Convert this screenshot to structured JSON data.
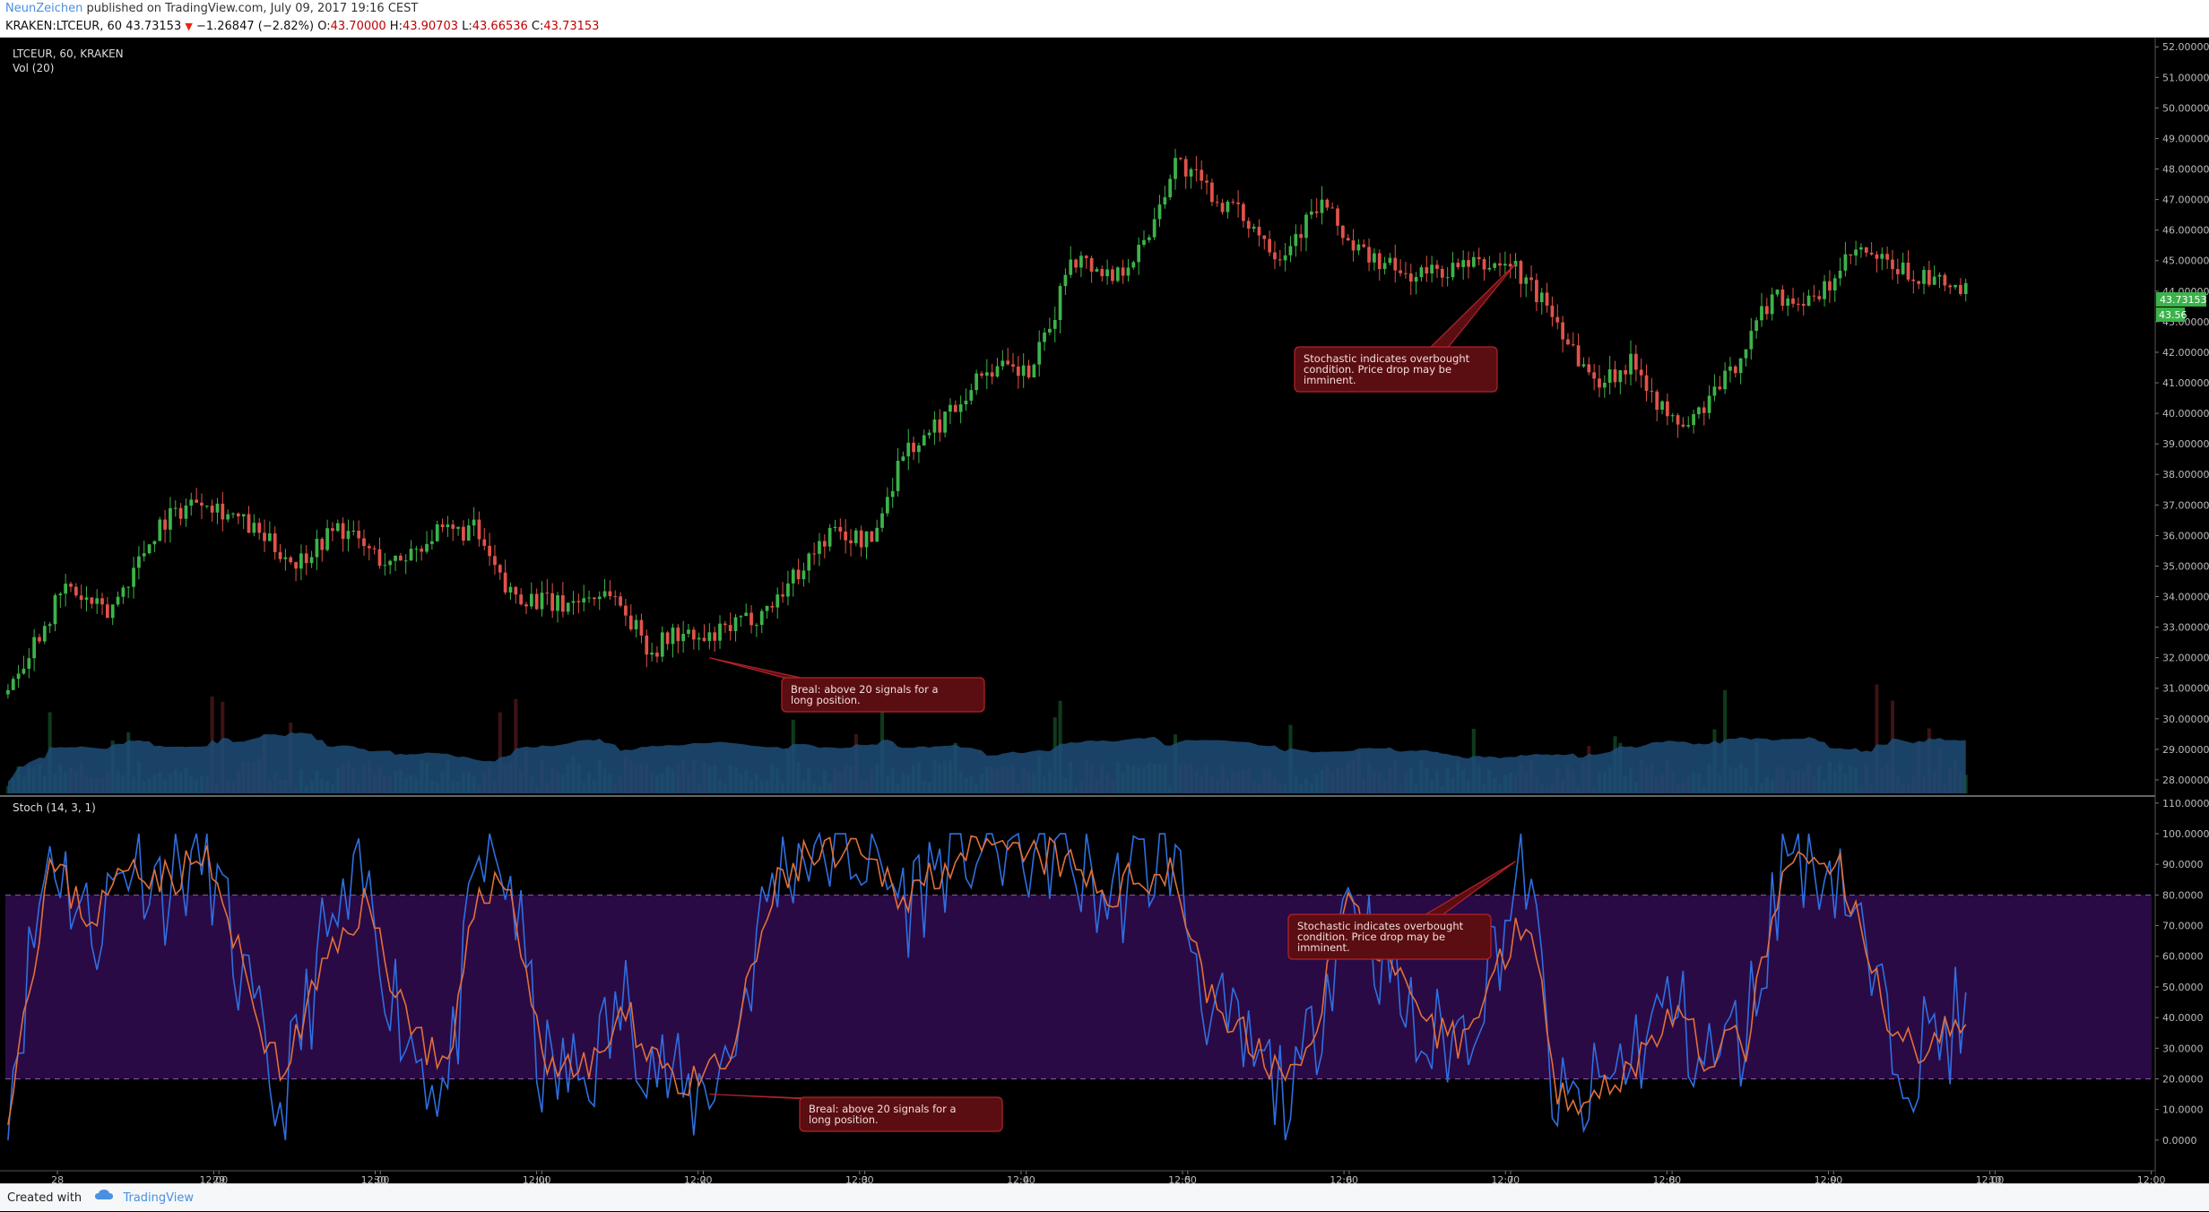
{
  "header": {
    "author": "NeunZeichen",
    "published": "published on TradingView.com, July 09, 2017 19:16 CEST",
    "symbol_line": "KRAKEN:LTCEUR, 60",
    "last": "43.73153",
    "change": "−1.26847 (−2.82%)",
    "open_label": "O:",
    "open": "43.70000",
    "high_label": "H:",
    "high": "43.90703",
    "low_label": "L:",
    "low": "43.66536",
    "close_label": "C:",
    "close": "43.73153"
  },
  "colors": {
    "up": "#3cb34a",
    "down": "#e0534a",
    "stoch_k": "#2f6fe0",
    "stoch_d": "#e0703a",
    "stoch_band": "#2a0a45",
    "volume_ma": "#1e4e78",
    "annotation_bg": "#5a0e12",
    "annotation_border": "#b5222a"
  },
  "chart_data": [
    {
      "type": "candlestick",
      "title": "LTCEUR, 60, KRAKEN",
      "volume_label": "Vol (20)",
      "ylim": [
        27.5,
        52.3
      ],
      "price_ticks": [
        "52.00000",
        "51.00000",
        "50.00000",
        "49.00000",
        "48.00000",
        "47.00000",
        "46.00000",
        "45.00000",
        "44.00000",
        "43.00000",
        "42.00000",
        "41.00000",
        "40.00000",
        "39.00000",
        "38.00000",
        "37.00000",
        "36.00000",
        "35.00000",
        "34.00000",
        "33.00000",
        "32.00000",
        "31.00000",
        "30.00000",
        "29.00000",
        "28.00000"
      ],
      "last_price_label": "43.73153",
      "ma_label": "43.56",
      "waypoints": [
        [
          0,
          30.8
        ],
        [
          12,
          34.3
        ],
        [
          20,
          33.4
        ],
        [
          30,
          36.4
        ],
        [
          38,
          37.3
        ],
        [
          46,
          36.4
        ],
        [
          56,
          35.1
        ],
        [
          64,
          36.3
        ],
        [
          74,
          35.0
        ],
        [
          82,
          36.0
        ],
        [
          90,
          36.2
        ],
        [
          96,
          34.2
        ],
        [
          106,
          33.7
        ],
        [
          116,
          34.2
        ],
        [
          124,
          32.2
        ],
        [
          128,
          32.8
        ],
        [
          134,
          32.5
        ],
        [
          146,
          33.6
        ],
        [
          158,
          36.1
        ],
        [
          166,
          35.8
        ],
        [
          172,
          38.8
        ],
        [
          176,
          39.1
        ],
        [
          188,
          41.5
        ],
        [
          196,
          41.3
        ],
        [
          200,
          42.7
        ],
        [
          204,
          45.2
        ],
        [
          212,
          44.5
        ],
        [
          218,
          45.5
        ],
        [
          224,
          48.3
        ],
        [
          232,
          47.0
        ],
        [
          238,
          46.3
        ],
        [
          244,
          45.2
        ],
        [
          252,
          46.9
        ],
        [
          258,
          45.4
        ],
        [
          268,
          44.5
        ],
        [
          280,
          44.8
        ],
        [
          288,
          44.9
        ],
        [
          296,
          43.3
        ],
        [
          304,
          41.0
        ],
        [
          312,
          41.7
        ],
        [
          318,
          39.8
        ],
        [
          322,
          39.6
        ],
        [
          330,
          41.3
        ],
        [
          338,
          43.9
        ],
        [
          346,
          43.6
        ],
        [
          354,
          45.3
        ],
        [
          362,
          44.7
        ],
        [
          374,
          44.0
        ]
      ],
      "annotations": [
        {
          "text": "Stochastic indicates overbought condition. Price drop may be imminent.",
          "x": 288,
          "y": 44.9
        },
        {
          "text": "Breal: above 20 signals for a long position.",
          "x": 134,
          "y": 32.0
        }
      ]
    },
    {
      "type": "line",
      "title": "Stoch (14, 3, 1)",
      "ylim": [
        -10,
        112
      ],
      "ticks": [
        "110.0000",
        "100.0000",
        "90.0000",
        "80.0000",
        "70.0000",
        "60.0000",
        "50.0000",
        "40.0000",
        "30.0000",
        "20.0000",
        "10.0000",
        "0.0000"
      ],
      "upper_band": 80,
      "lower_band": 20,
      "series_k_waypoints": [
        [
          0,
          15
        ],
        [
          8,
          97
        ],
        [
          16,
          68
        ],
        [
          24,
          95
        ],
        [
          30,
          82
        ],
        [
          38,
          95
        ],
        [
          44,
          55
        ],
        [
          52,
          8
        ],
        [
          60,
          62
        ],
        [
          68,
          82
        ],
        [
          76,
          35
        ],
        [
          84,
          15
        ],
        [
          90,
          90
        ],
        [
          96,
          85
        ],
        [
          102,
          22
        ],
        [
          110,
          20
        ],
        [
          118,
          45
        ],
        [
          124,
          25
        ],
        [
          130,
          12
        ],
        [
          138,
          28
        ],
        [
          146,
          85
        ],
        [
          152,
          96
        ],
        [
          162,
          95
        ],
        [
          172,
          78
        ],
        [
          180,
          95
        ],
        [
          190,
          95
        ],
        [
          200,
          95
        ],
        [
          210,
          78
        ],
        [
          222,
          95
        ],
        [
          230,
          40
        ],
        [
          238,
          25
        ],
        [
          246,
          12
        ],
        [
          256,
          82
        ],
        [
          264,
          55
        ],
        [
          270,
          30
        ],
        [
          278,
          35
        ],
        [
          290,
          90
        ],
        [
          296,
          8
        ],
        [
          302,
          12
        ],
        [
          310,
          28
        ],
        [
          318,
          45
        ],
        [
          324,
          25
        ],
        [
          332,
          35
        ],
        [
          340,
          97
        ],
        [
          350,
          88
        ],
        [
          358,
          40
        ],
        [
          364,
          28
        ],
        [
          372,
          38
        ]
      ],
      "series_d_waypoints": [
        [
          0,
          12
        ],
        [
          8,
          90
        ],
        [
          16,
          72
        ],
        [
          24,
          92
        ],
        [
          30,
          85
        ],
        [
          38,
          92
        ],
        [
          44,
          60
        ],
        [
          52,
          20
        ],
        [
          60,
          55
        ],
        [
          68,
          78
        ],
        [
          76,
          42
        ],
        [
          84,
          20
        ],
        [
          90,
          84
        ],
        [
          96,
          82
        ],
        [
          102,
          28
        ],
        [
          110,
          22
        ],
        [
          118,
          40
        ],
        [
          124,
          28
        ],
        [
          130,
          16
        ],
        [
          138,
          26
        ],
        [
          146,
          80
        ],
        [
          152,
          92
        ],
        [
          162,
          92
        ],
        [
          172,
          80
        ],
        [
          180,
          92
        ],
        [
          190,
          93
        ],
        [
          200,
          92
        ],
        [
          210,
          80
        ],
        [
          222,
          90
        ],
        [
          230,
          45
        ],
        [
          238,
          30
        ],
        [
          246,
          18
        ],
        [
          256,
          78
        ],
        [
          264,
          58
        ],
        [
          270,
          35
        ],
        [
          278,
          33
        ],
        [
          290,
          75
        ],
        [
          296,
          18
        ],
        [
          302,
          14
        ],
        [
          310,
          24
        ],
        [
          318,
          42
        ],
        [
          324,
          28
        ],
        [
          332,
          32
        ],
        [
          340,
          90
        ],
        [
          350,
          88
        ],
        [
          358,
          45
        ],
        [
          364,
          30
        ],
        [
          372,
          35
        ]
      ],
      "annotations": [
        {
          "text": "Stochastic indicates overbought condition. Price drop may be imminent.",
          "x": 288,
          "y": 91
        },
        {
          "text": "Breal: above 20 signals for a long position.",
          "x": 134,
          "y": 15
        }
      ]
    }
  ],
  "x_axis": {
    "labels": [
      {
        "x": 10,
        "text": "28"
      },
      {
        "x": 40,
        "text": "12:00"
      },
      {
        "x": 40.5,
        "text": ""
      },
      {
        "x": 41,
        "text": "29"
      },
      {
        "x": 71,
        "text": "12:00"
      },
      {
        "x": 72,
        "text": "30"
      },
      {
        "x": 102,
        "text": "12:00"
      },
      {
        "x": 103,
        "text": "Jul"
      },
      {
        "x": 133,
        "text": "12:00"
      },
      {
        "x": 134,
        "text": "2"
      },
      {
        "x": 164,
        "text": "12:00"
      },
      {
        "x": 165,
        "text": "3"
      },
      {
        "x": 195,
        "text": "12:00"
      },
      {
        "x": 196,
        "text": "4"
      },
      {
        "x": 226,
        "text": "12:00"
      },
      {
        "x": 227,
        "text": "5"
      },
      {
        "x": 257,
        "text": "12:00"
      },
      {
        "x": 258,
        "text": "6"
      },
      {
        "x": 288,
        "text": "12:00"
      },
      {
        "x": 289,
        "text": "7"
      },
      {
        "x": 319,
        "text": "12:00"
      },
      {
        "x": 320,
        "text": "8"
      },
      {
        "x": 350,
        "text": "12:00"
      },
      {
        "x": 351,
        "text": "9"
      },
      {
        "x": 381,
        "text": "12:00"
      },
      {
        "x": 382,
        "text": "10"
      },
      {
        "x": 412,
        "text": "12:00"
      }
    ]
  },
  "footer": {
    "created_with": "Created with",
    "brand": "TradingView"
  }
}
